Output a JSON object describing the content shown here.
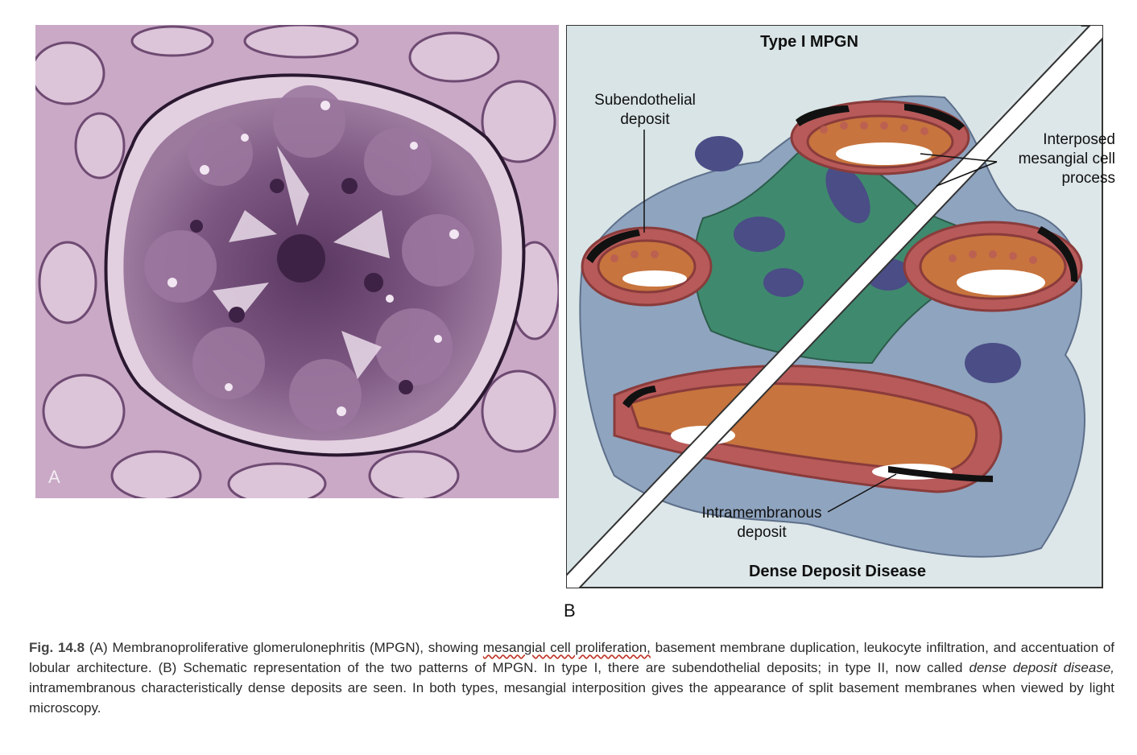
{
  "panel_a": {
    "label": "A"
  },
  "panel_b": {
    "label": "B",
    "title_top": "Type I MPGN",
    "title_bottom": "Dense Deposit Disease",
    "labels": {
      "subendothelial": "Subendothelial deposit",
      "interposed": "Interposed mesangial cell process",
      "intramembranous": "Intramembranous deposit"
    }
  },
  "caption": {
    "fig_number": "Fig. 14.8",
    "part1": "(A) Membranoproliferative glomerulonephritis (MPGN), showing ",
    "highlight": "mesangial cell proliferation,",
    "part2": " basement membrane duplication, leukocyte infiltration, and accentuation of lobular architecture. (B) Schematic representation of the two patterns of MPGN. In type I, there are subendothelial deposits; in type II, now called ",
    "italic": "dense deposit disease,",
    "part3": " intramembranous characteristically dense deposits are seen. In both types, mesangial interposition gives the appearance of split basement membranes when viewed by light microscopy."
  },
  "colors": {
    "histology_bg": "#c9a9c6",
    "histology_dark": "#5a3760",
    "mesangium": "#3f8a6e",
    "capillary_wall": "#b85a5a",
    "lumen": "#c7743e",
    "podocyte": "#8fa4bf",
    "background_b": "#dde6e8",
    "nucleus": "#4a4d86"
  }
}
